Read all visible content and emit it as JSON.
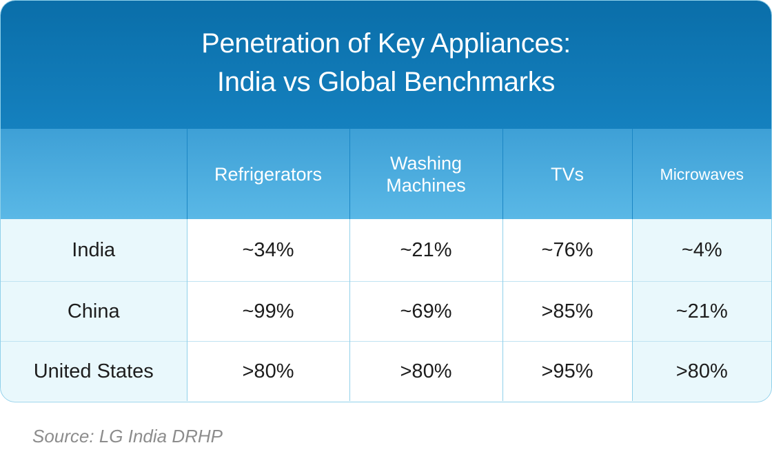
{
  "chart_data": {
    "type": "table",
    "title": "Penetration of Key Appliances:",
    "subtitle": "India vs Global Benchmarks",
    "columns": [
      "",
      "Refrigerators",
      "Washing Machines",
      "TVs",
      "Microwaves"
    ],
    "column_lines": {
      "refrigerators": [
        "Refrigerators"
      ],
      "washing_machines": [
        "Washing",
        "Machines"
      ],
      "tvs": [
        "TVs"
      ],
      "microwaves": [
        "Microwaves"
      ]
    },
    "rows": [
      {
        "label": "India",
        "values": [
          "~34%",
          "~21%",
          "~76%",
          "~4%"
        ]
      },
      {
        "label": "China",
        "values": [
          "~99%",
          "~69%",
          ">85%",
          "~21%"
        ]
      },
      {
        "label": "United States",
        "values": [
          ">80%",
          ">80%",
          ">95%",
          ">80%"
        ]
      }
    ],
    "source": "Source: LG India DRHP"
  },
  "colors": {
    "title_bg": "#0a6ea9",
    "header_bg": "#4aacdf",
    "row_label_bg": "#e9f8fc",
    "border": "#8fd0ea",
    "source_text": "#8c8c8c"
  }
}
